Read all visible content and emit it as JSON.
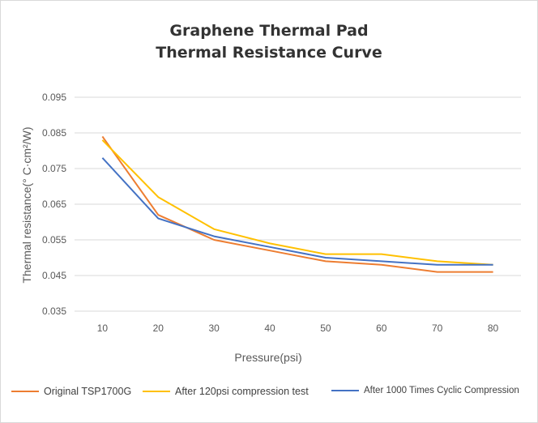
{
  "chart_data": {
    "type": "line",
    "title_lines": [
      "Graphene Thermal Pad",
      "Thermal Resistance Curve"
    ],
    "xlabel": "Pressure(psi)",
    "ylabel": "Thermal resistance(° C·cm²/W)",
    "x": [
      10,
      20,
      30,
      40,
      50,
      60,
      70,
      80
    ],
    "x_tick_labels": [
      "10",
      "20",
      "30",
      "40",
      "50",
      "60",
      "70",
      "80"
    ],
    "ylim": [
      0.035,
      0.095
    ],
    "y_ticks": [
      0.035,
      0.045,
      0.055,
      0.065,
      0.075,
      0.085,
      0.095
    ],
    "y_tick_labels": [
      "0.035",
      "0.045",
      "0.055",
      "0.065",
      "0.075",
      "0.085",
      "0.095"
    ],
    "grid": true,
    "legend_position": "bottom",
    "series": [
      {
        "name": "Original TSP1700G",
        "color": "#ED7D31",
        "values": [
          0.084,
          0.062,
          0.055,
          0.052,
          0.049,
          0.048,
          0.046,
          0.046
        ]
      },
      {
        "name": "After 120psi compression test",
        "color": "#FFC000",
        "values": [
          0.083,
          0.067,
          0.058,
          0.054,
          0.051,
          0.051,
          0.049,
          0.048
        ]
      },
      {
        "name": "After 1000 Times Cyclic Compression",
        "color": "#4472C4",
        "values": [
          0.078,
          0.061,
          0.056,
          0.053,
          0.05,
          0.049,
          0.048,
          0.048
        ]
      }
    ]
  }
}
